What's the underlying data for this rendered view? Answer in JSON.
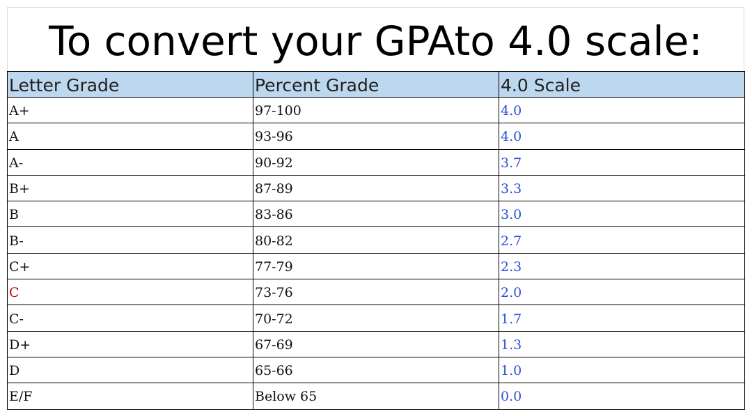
{
  "title": "To convert your GPAto 4.0 scale:",
  "table": {
    "headers": [
      "Letter Grade",
      "Percent Grade",
      "4.0 Scale"
    ],
    "rows": [
      {
        "letter": "A+",
        "percent": "97-100",
        "scale": "4.0"
      },
      {
        "letter": "A",
        "percent": "93-96",
        "scale": "4.0"
      },
      {
        "letter": "A-",
        "percent": "90-92",
        "scale": "3.7"
      },
      {
        "letter": "B+",
        "percent": "87-89",
        "scale": "3.3"
      },
      {
        "letter": "B",
        "percent": "83-86",
        "scale": "3.0"
      },
      {
        "letter": "B-",
        "percent": "80-82",
        "scale": "2.7"
      },
      {
        "letter": "C+",
        "percent": "77-79",
        "scale": "2.3"
      },
      {
        "letter": "C",
        "percent": "73-76",
        "scale": "2.0"
      },
      {
        "letter": "C-",
        "percent": "70-72",
        "scale": "1.7"
      },
      {
        "letter": "D+",
        "percent": "67-69",
        "scale": "1.3"
      },
      {
        "letter": "D",
        "percent": "65-66",
        "scale": "1.0"
      },
      {
        "letter": "E/F",
        "percent": "Below 65",
        "scale": "0.0"
      }
    ]
  },
  "colors": {
    "header_background": "#bdd7ee",
    "scale_text": "#2b4fd8",
    "highlight_text": "#c00000"
  }
}
